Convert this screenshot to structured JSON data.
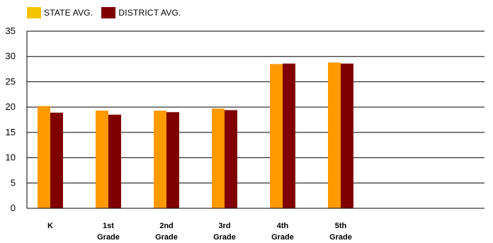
{
  "chart_data": {
    "type": "bar",
    "categories": [
      [
        "K"
      ],
      [
        "1st",
        "Grade"
      ],
      [
        "2nd",
        "Grade"
      ],
      [
        "3rd",
        "Grade"
      ],
      [
        "4th",
        "Grade"
      ],
      [
        "5th",
        "Grade"
      ]
    ],
    "series": [
      {
        "name": "STATE AVG.",
        "values": [
          20.2,
          19.3,
          19.3,
          19.7,
          28.5,
          28.8
        ],
        "color": "#ff9900",
        "legend_color": "#f5c400"
      },
      {
        "name": "DISTRICT AVG.",
        "values": [
          18.9,
          18.5,
          19.0,
          19.4,
          28.6,
          28.6
        ],
        "color": "#800000",
        "legend_color": "#800000"
      }
    ],
    "ylim": [
      0,
      35
    ],
    "yticks": [
      0,
      5,
      10,
      15,
      20,
      25,
      30,
      35
    ],
    "grid": true,
    "legend": "top-left"
  }
}
